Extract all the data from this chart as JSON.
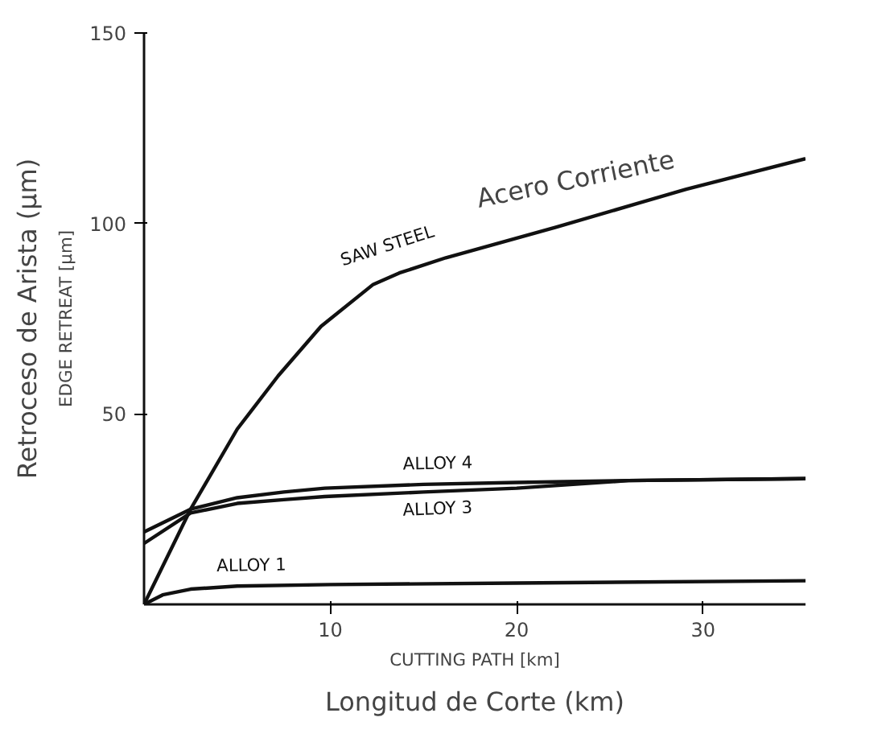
{
  "chart_data": {
    "type": "line",
    "xlabel": "CUTTING PATH [km]",
    "ylabel": "EDGE RETREAT [µm]",
    "annotations": [
      "Longitud de Corte (km)",
      "Retroceso de Arista (µm)",
      "Acero Corriente"
    ],
    "xlim": [
      0,
      35.5
    ],
    "ylim": [
      0,
      150
    ],
    "xticks": [
      10,
      20,
      30
    ],
    "yticks": [
      50,
      100,
      150
    ],
    "grid": false,
    "marker": "none",
    "line_style": "solid",
    "series": [
      {
        "name": "SAW STEEL",
        "color": "#111111",
        "x": [
          0,
          2.5,
          5,
          7.2,
          9.5,
          12.3,
          13.7,
          16.2,
          22.1,
          29.1,
          35.5
        ],
        "values": [
          0,
          25,
          46,
          60,
          73,
          84,
          87,
          91,
          99,
          109,
          117
        ]
      },
      {
        "name": "ALLOY 4",
        "color": "#111111",
        "x": [
          0,
          2.5,
          5,
          7.5,
          9.7,
          15,
          20,
          26,
          35.5
        ],
        "values": [
          19,
          25,
          28,
          29.5,
          30.5,
          31.5,
          32,
          32.5,
          33
        ]
      },
      {
        "name": "ALLOY 3",
        "color": "#111111",
        "x": [
          0,
          2.5,
          5,
          7.5,
          9.7,
          15,
          20,
          26,
          35.5
        ],
        "values": [
          16,
          24,
          26.5,
          27.5,
          28.3,
          29.5,
          30.5,
          32.5,
          33
        ]
      },
      {
        "name": "ALLOY 1",
        "color": "#111111",
        "x": [
          0,
          1,
          2.5,
          5,
          10,
          20,
          35.5
        ],
        "values": [
          0,
          2.5,
          4,
          4.8,
          5.2,
          5.6,
          6.2
        ]
      }
    ]
  }
}
